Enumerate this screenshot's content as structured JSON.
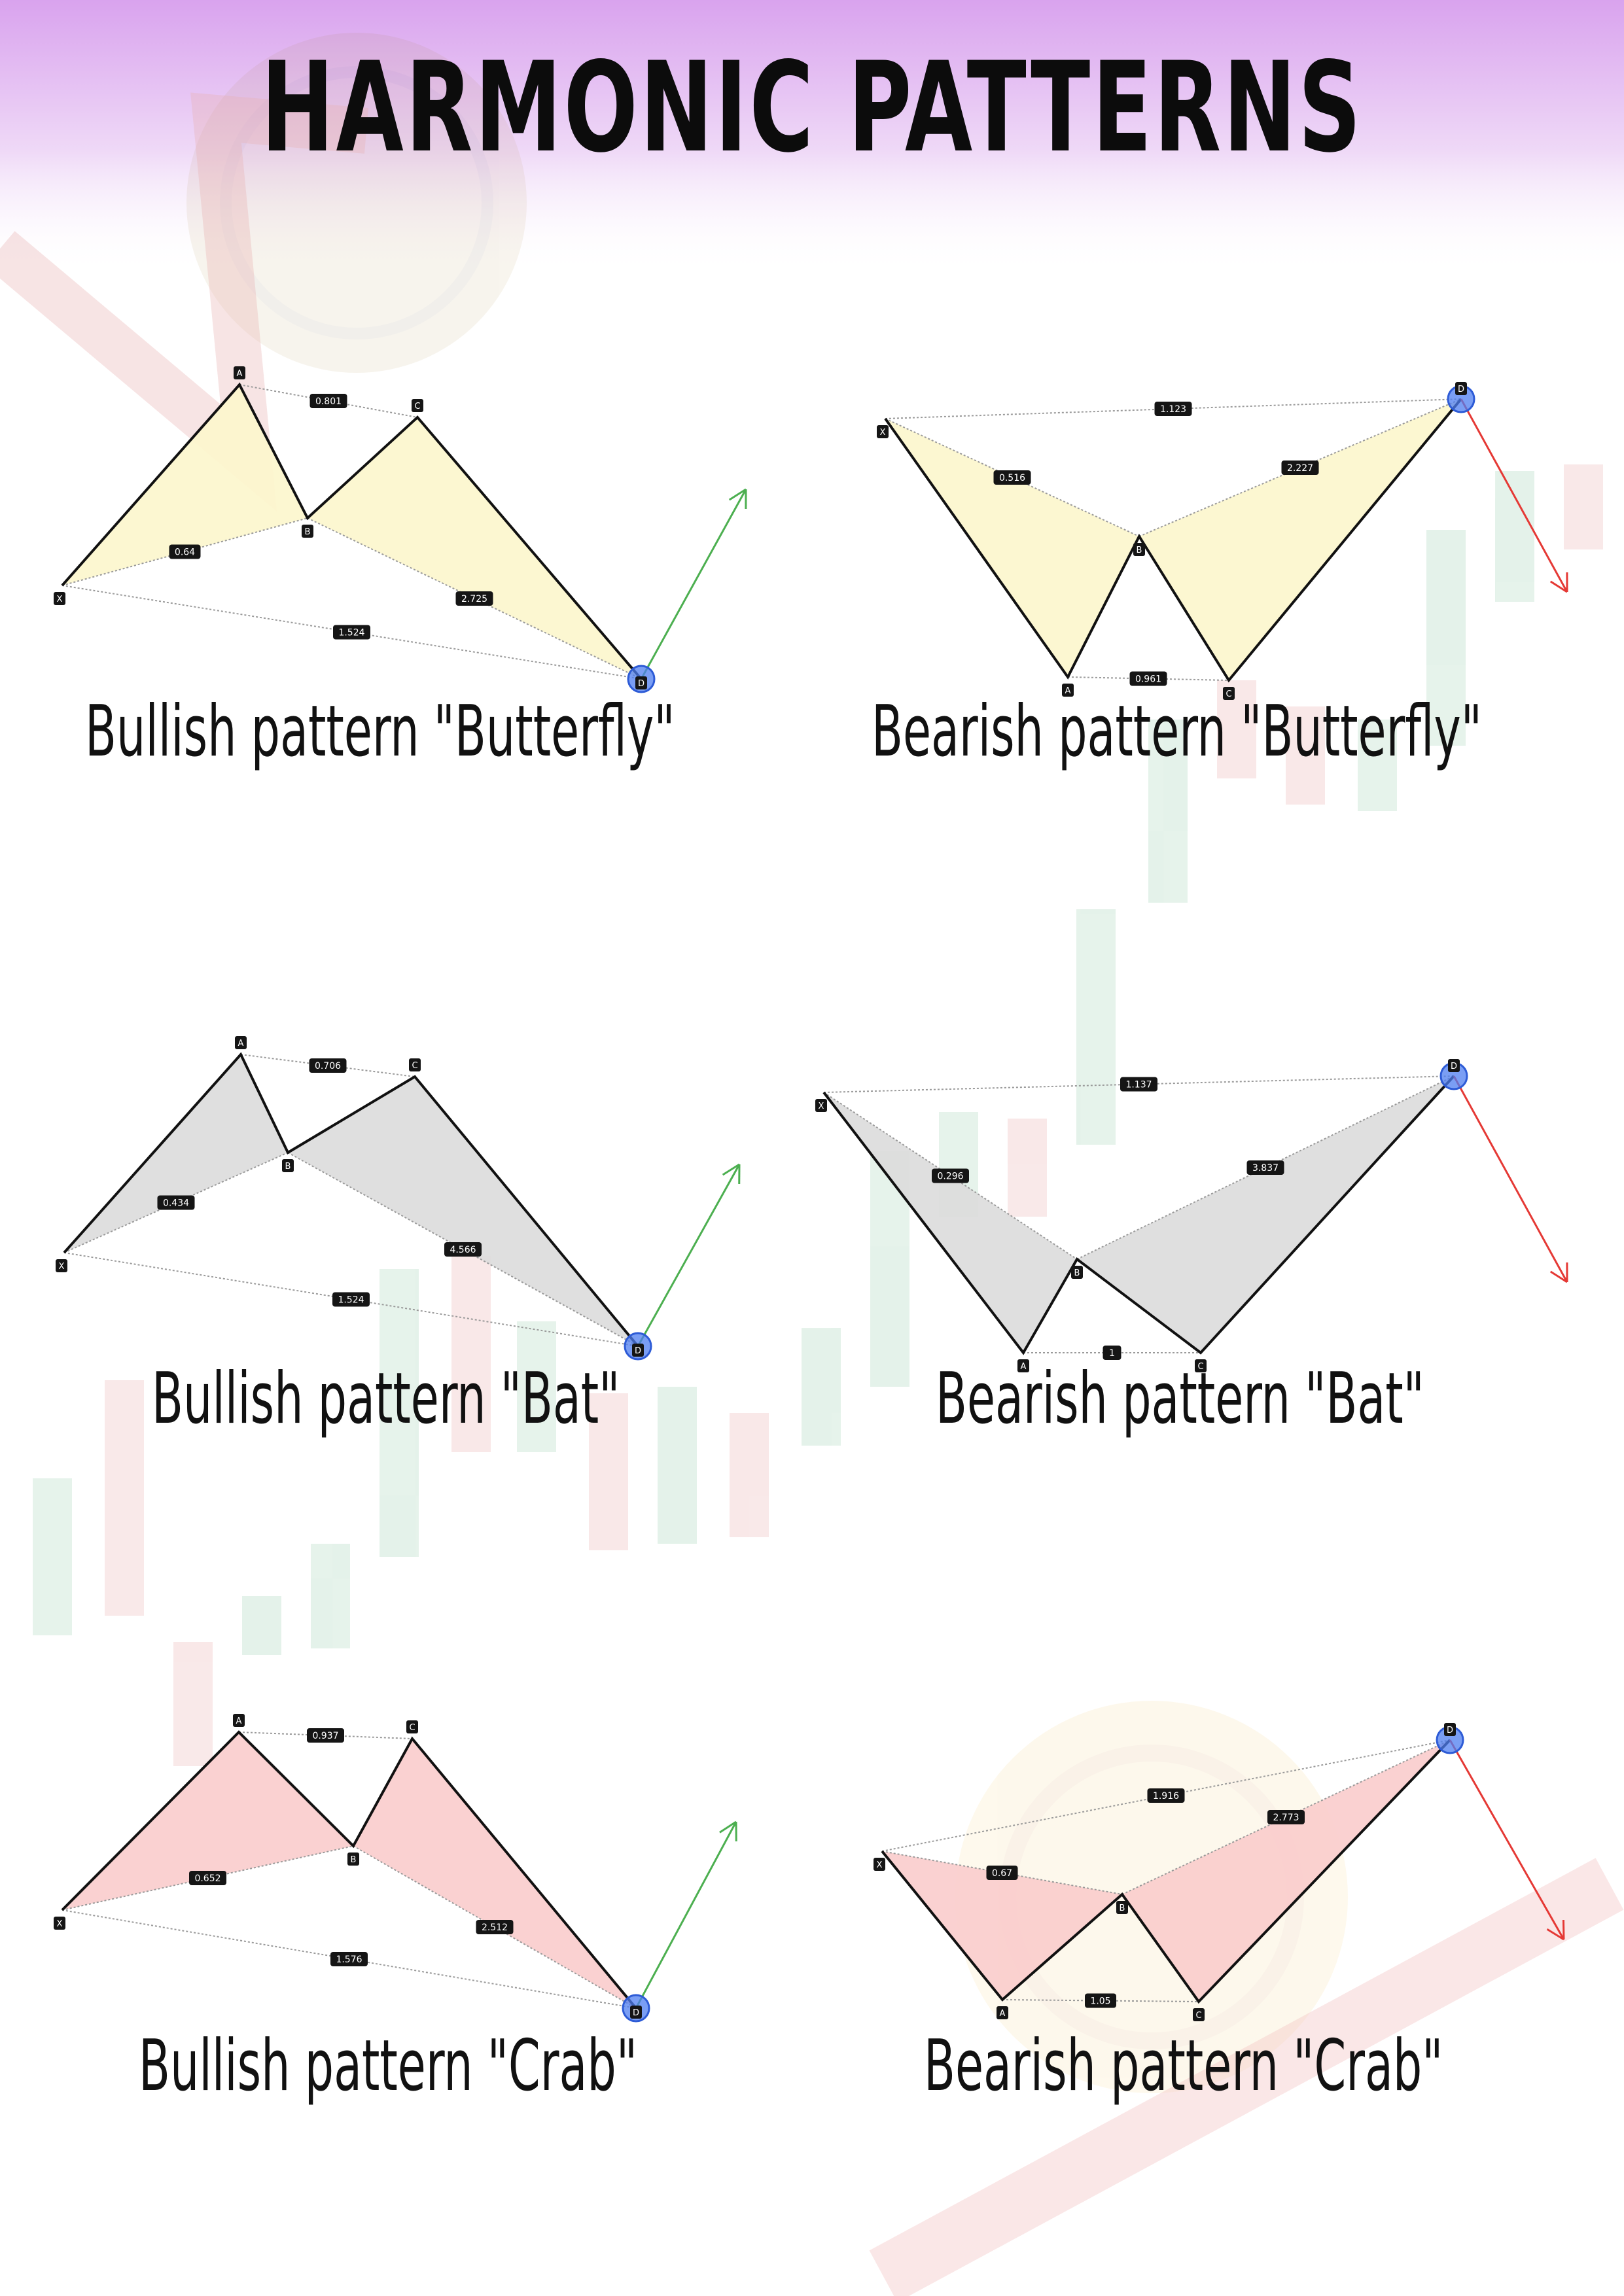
{
  "page": {
    "title": "HARMONIC PATTERNS"
  },
  "colors": {
    "header_gradient_top": "#dba8f0",
    "butterfly_fill": "#fcf6cc",
    "bat_fill": "#dcdcdc",
    "crab_fill": "#f9cccc",
    "bullish_arrow": "#4caf50",
    "bearish_arrow": "#e53935",
    "d_marker": "#4d7ef0"
  },
  "patterns": [
    {
      "id": "bullish-butterfly",
      "caption": "Bullish pattern \"Butterfly\"",
      "direction": "bullish",
      "fill": "butterfly",
      "labels": [
        "X",
        "A",
        "B",
        "C",
        "D"
      ],
      "ratios": {
        "AC": "0.801",
        "XB": "0.64",
        "BD": "2.725",
        "XD": "1.524"
      }
    },
    {
      "id": "bearish-butterfly",
      "caption": "Bearish pattern \"Butterfly\"",
      "direction": "bearish",
      "fill": "butterfly",
      "labels": [
        "X",
        "A",
        "B",
        "C",
        "D"
      ],
      "ratios": {
        "XD": "1.123",
        "XB": "0.516",
        "BD": "2.227",
        "AC": "0.961"
      }
    },
    {
      "id": "bullish-bat",
      "caption": "Bullish pattern \"Bat\"",
      "direction": "bullish",
      "fill": "bat",
      "labels": [
        "X",
        "A",
        "B",
        "C",
        "D"
      ],
      "ratios": {
        "AC": "0.706",
        "XB": "0.434",
        "BD": "4.566",
        "XD": "1.524"
      }
    },
    {
      "id": "bearish-bat",
      "caption": "Bearish pattern \"Bat\"",
      "direction": "bearish",
      "fill": "bat",
      "labels": [
        "X",
        "A",
        "B",
        "C",
        "D"
      ],
      "ratios": {
        "XD": "1.137",
        "XB": "0.296",
        "BD": "3.837",
        "AC": "1"
      }
    },
    {
      "id": "bullish-crab",
      "caption": "Bullish pattern \"Crab\"",
      "direction": "bullish",
      "fill": "crab",
      "labels": [
        "X",
        "A",
        "B",
        "C",
        "D"
      ],
      "ratios": {
        "AC": "0.937",
        "XB": "0.652",
        "BD": "2.512",
        "XD": "1.576"
      }
    },
    {
      "id": "bearish-crab",
      "caption": "Bearish pattern \"Crab\"",
      "direction": "bearish",
      "fill": "crab",
      "labels": [
        "X",
        "A",
        "B",
        "C",
        "D"
      ],
      "ratios": {
        "XD": "1.916",
        "XB": "0.67",
        "BD": "2.773",
        "AC": "1.05"
      }
    }
  ]
}
